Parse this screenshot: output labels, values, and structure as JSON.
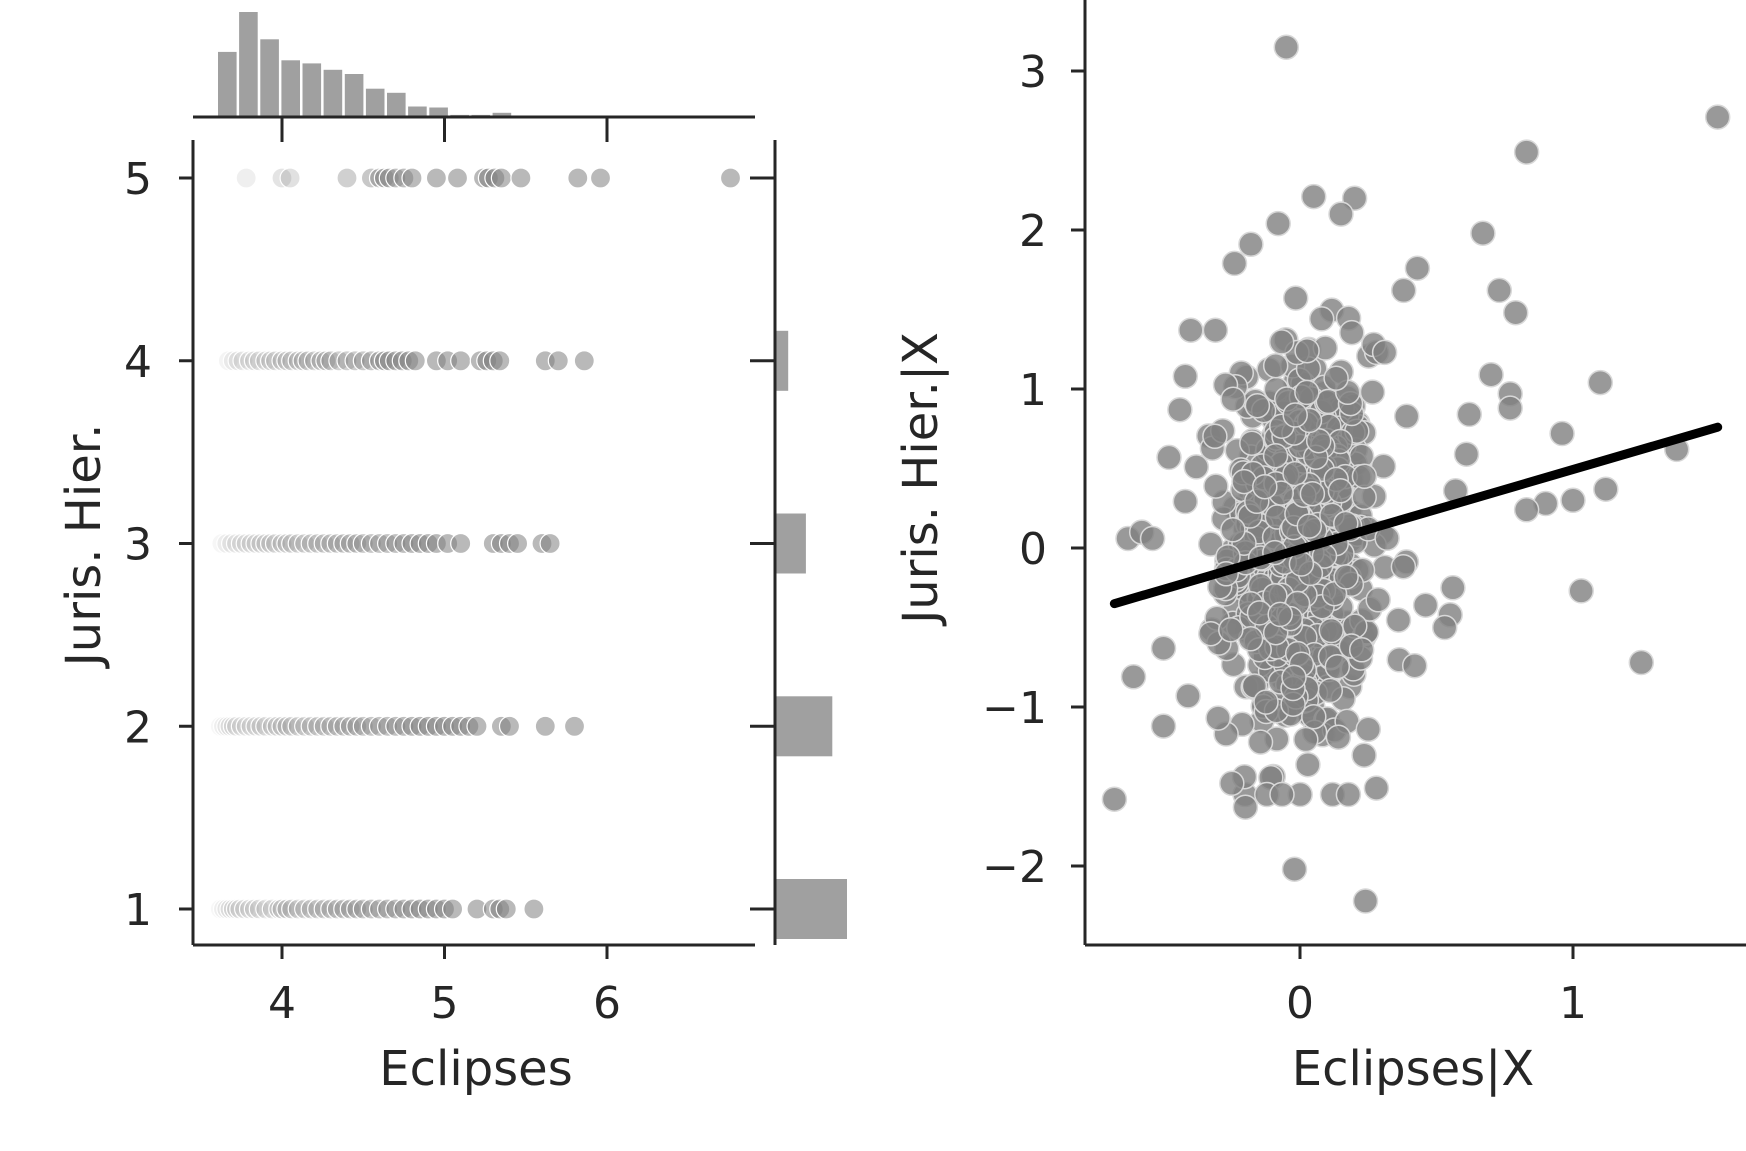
{
  "chart_data": [
    {
      "type": "scatter",
      "panel": "joint plot with marginal histograms",
      "xlabel": "Eclipses",
      "ylabel": "Juris. Hier.",
      "xlim": [
        3.45,
        7.0
      ],
      "ylim": [
        0.8,
        5.2
      ],
      "xticks": [
        4,
        5,
        6
      ],
      "yticks": [
        1,
        2,
        3,
        4,
        5
      ],
      "point_color": "#808080",
      "marginal_x_histogram": {
        "bin_start": 3.6,
        "bin_width": 0.13,
        "counts": [
          62,
          100,
          74,
          54,
          51,
          45,
          41,
          27,
          23,
          10,
          9,
          2,
          2,
          4
        ]
      },
      "marginal_y_histogram": {
        "levels": [
          1,
          2,
          3,
          4
        ],
        "counts": [
          49,
          39,
          21,
          9
        ]
      },
      "points": [
        {
          "level": 5,
          "x": [
            3.78,
            4.0,
            4.05,
            4.4,
            4.55,
            4.6,
            4.63,
            4.66,
            4.7,
            4.75,
            4.8,
            4.95,
            5.08,
            5.24,
            5.27,
            5.31,
            5.35,
            5.47,
            5.82,
            5.96,
            6.76
          ]
        },
        {
          "level": 4,
          "x": [
            3.67,
            3.7,
            3.73,
            3.76,
            3.8,
            3.83,
            3.86,
            3.9,
            3.93,
            3.96,
            4.0,
            4.03,
            4.06,
            4.1,
            4.13,
            4.16,
            4.2,
            4.24,
            4.27,
            4.3,
            4.35,
            4.4,
            4.45,
            4.5,
            4.55,
            4.6,
            4.63,
            4.66,
            4.7,
            4.74,
            4.78,
            4.82,
            4.95,
            5.02,
            5.1,
            5.22,
            5.26,
            5.3,
            5.34,
            5.62,
            5.7,
            5.86
          ]
        },
        {
          "level": 3,
          "x": [
            3.63,
            3.66,
            3.69,
            3.72,
            3.75,
            3.78,
            3.81,
            3.84,
            3.87,
            3.9,
            3.93,
            3.96,
            4.0,
            4.03,
            4.06,
            4.1,
            4.14,
            4.18,
            4.22,
            4.26,
            4.3,
            4.34,
            4.38,
            4.42,
            4.46,
            4.5,
            4.55,
            4.6,
            4.65,
            4.7,
            4.75,
            4.8,
            4.85,
            4.9,
            4.95,
            5.02,
            5.1,
            5.3,
            5.35,
            5.4,
            5.45,
            5.6,
            5.65
          ]
        },
        {
          "level": 2,
          "x": [
            3.62,
            3.64,
            3.66,
            3.68,
            3.7,
            3.72,
            3.75,
            3.78,
            3.81,
            3.84,
            3.87,
            3.9,
            3.94,
            3.97,
            4.0,
            4.03,
            4.06,
            4.1,
            4.14,
            4.18,
            4.22,
            4.26,
            4.3,
            4.34,
            4.38,
            4.42,
            4.46,
            4.5,
            4.55,
            4.6,
            4.65,
            4.7,
            4.75,
            4.8,
            4.85,
            4.9,
            4.95,
            5.0,
            5.05,
            5.1,
            5.15,
            5.2,
            5.35,
            5.4,
            5.62,
            5.8
          ]
        },
        {
          "level": 1,
          "x": [
            3.62,
            3.64,
            3.66,
            3.68,
            3.7,
            3.72,
            3.74,
            3.77,
            3.8,
            3.83,
            3.86,
            3.9,
            3.94,
            3.98,
            4.0,
            4.03,
            4.06,
            4.1,
            4.14,
            4.18,
            4.22,
            4.26,
            4.3,
            4.34,
            4.38,
            4.42,
            4.46,
            4.5,
            4.55,
            4.6,
            4.65,
            4.7,
            4.75,
            4.8,
            4.85,
            4.9,
            4.95,
            5.0,
            5.05,
            5.2,
            5.3,
            5.34,
            5.38,
            5.55
          ]
        }
      ]
    },
    {
      "type": "scatter",
      "panel": "partial regression plot",
      "xlabel": "Eclipses|X",
      "ylabel": "Juris. Hier.|X",
      "xlim": [
        -0.78,
        1.62
      ],
      "ylim": [
        -2.5,
        3.4
      ],
      "xticks": [
        0,
        1
      ],
      "xtick_labels": [
        "0",
        "1"
      ],
      "yticks": [
        -2,
        -1,
        0,
        1,
        2,
        3
      ],
      "ytick_labels": [
        "−2",
        "−1",
        "0",
        "1",
        "2",
        "3"
      ],
      "point_color": "#808080",
      "fit_line": {
        "x": [
          -0.68,
          1.53
        ],
        "y": [
          -0.35,
          0.76
        ],
        "color": "#000000"
      },
      "outliers": [
        [
          -0.05,
          3.15
        ],
        [
          1.53,
          2.71
        ],
        [
          0.83,
          2.49
        ],
        [
          0.67,
          1.98
        ],
        [
          0.73,
          1.62
        ],
        [
          0.79,
          1.48
        ],
        [
          0.43,
          1.76
        ],
        [
          0.38,
          1.62
        ],
        [
          0.27,
          1.28
        ],
        [
          0.31,
          1.23
        ],
        [
          0.57,
          0.36
        ],
        [
          0.61,
          0.59
        ],
        [
          0.62,
          0.84
        ],
        [
          0.7,
          1.09
        ],
        [
          0.77,
          0.97
        ],
        [
          0.77,
          0.88
        ],
        [
          0.96,
          0.72
        ],
        [
          1.1,
          1.04
        ],
        [
          1.38,
          0.62
        ],
        [
          0.9,
          0.28
        ],
        [
          1.0,
          0.3
        ],
        [
          0.83,
          0.24
        ],
        [
          1.12,
          0.37
        ],
        [
          1.03,
          -0.27
        ],
        [
          1.25,
          -0.72
        ],
        [
          0.55,
          -0.42
        ],
        [
          0.53,
          -0.5
        ],
        [
          0.56,
          -0.25
        ],
        [
          0.46,
          -0.36
        ],
        [
          0.42,
          -0.74
        ],
        [
          0.28,
          -1.51
        ],
        [
          0.25,
          -1.14
        ],
        [
          0.24,
          -2.22
        ],
        [
          -0.02,
          -2.02
        ],
        [
          -0.68,
          -1.58
        ],
        [
          -0.61,
          -0.81
        ],
        [
          -0.5,
          -0.63
        ],
        [
          -0.5,
          -1.12
        ],
        [
          -0.41,
          -0.93
        ],
        [
          -0.63,
          0.06
        ],
        [
          -0.58,
          0.1
        ],
        [
          -0.54,
          0.06
        ],
        [
          -0.48,
          0.57
        ],
        [
          -0.4,
          1.37
        ],
        [
          -0.31,
          1.37
        ],
        [
          -0.44,
          0.87
        ],
        [
          -0.42,
          1.08
        ],
        [
          -0.38,
          0.51
        ],
        [
          -0.24,
          1.79
        ],
        [
          -0.18,
          1.91
        ],
        [
          -0.08,
          2.04
        ],
        [
          0.05,
          2.21
        ],
        [
          0.2,
          2.2
        ],
        [
          0.15,
          2.1
        ],
        [
          -0.3,
          -1.07
        ],
        [
          -0.25,
          -1.48
        ],
        [
          -0.2,
          -1.63
        ]
      ],
      "cluster": {
        "count": 700,
        "x_mean": 0.0,
        "x_sd": 0.13,
        "y_mean": 0.0,
        "y_sd": 0.62
      }
    }
  ]
}
